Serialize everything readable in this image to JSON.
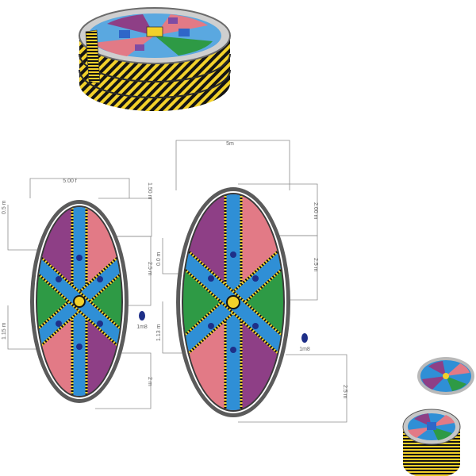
{
  "colors": {
    "purple": "#8e3f86",
    "salmon": "#e27a86",
    "blue": "#2f8fd6",
    "green": "#2e9a45",
    "yellow": "#f2d12a",
    "black": "#141414",
    "outline": "#6b6b6b",
    "dimension_line": "#8d8d8d",
    "dot": "#1e2f88"
  },
  "icons": [
    "inflatable-arena-3d-icon",
    "small-arena-3d-icon",
    "person-marker-icon"
  ],
  "diagram": {
    "left_plan": {
      "dim_top": "5.00 f",
      "dim_right_top": "1.50 m",
      "dim_left_top": "0.5 m",
      "dim_right_mid": "2.5 m",
      "dim_left_bottom": "1.15 m",
      "dim_right_bottom": "2 m",
      "person_label": "1m8"
    },
    "right_plan": {
      "dim_top": "5m",
      "dim_right_top": "2.00 m",
      "dim_left_top": "0.0 m",
      "dim_right_mid": "2.5 m",
      "dim_left_bottom": "1.13 m",
      "dim_right_bottom": "2.5 m",
      "person_label": "1m8"
    }
  }
}
